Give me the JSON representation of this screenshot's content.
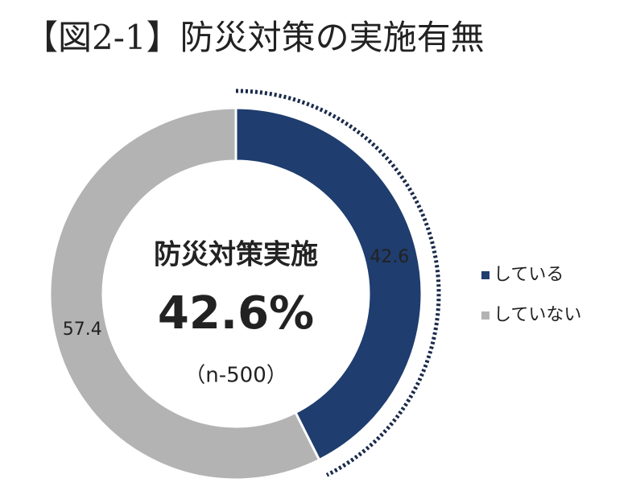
{
  "chart_data": {
    "type": "pie",
    "title": "【図2-1】防災対策の実施有無",
    "categories": [
      "している",
      "していない"
    ],
    "values": [
      42.6,
      57.4
    ],
    "colors": [
      "#1f3d6e",
      "#b3b3b3"
    ],
    "center_label": "防災対策実施",
    "center_value": "42.6%",
    "sample_size": "（n-500）",
    "legend": "right"
  }
}
